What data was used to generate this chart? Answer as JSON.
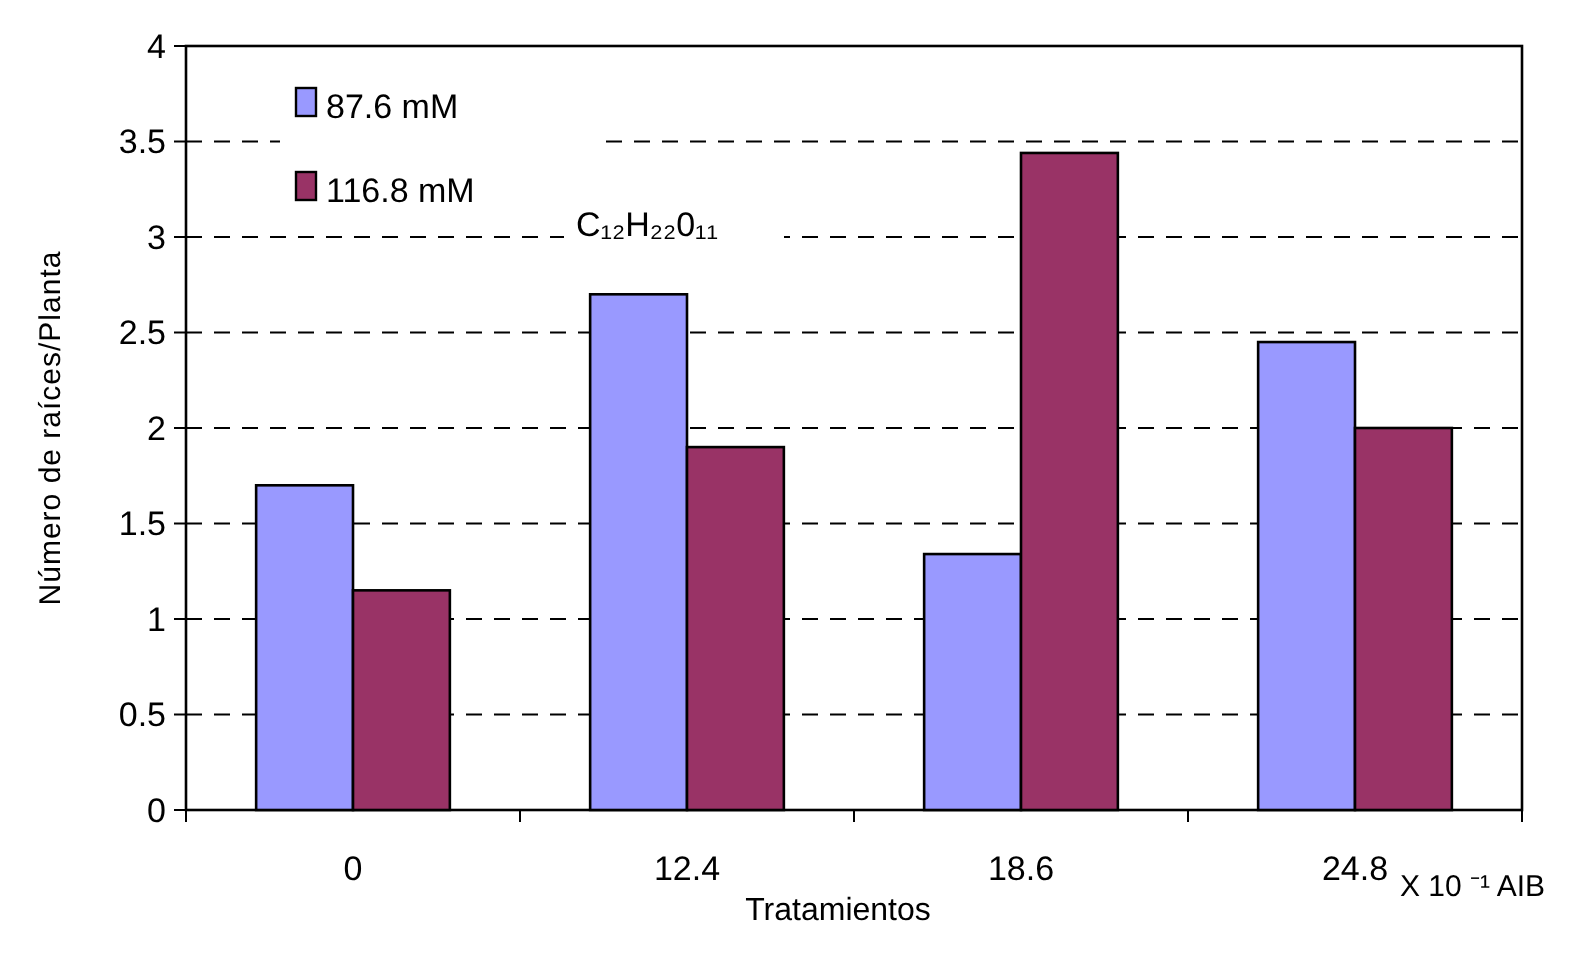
{
  "chart_data": {
    "type": "bar",
    "xlabel": "Tratamientos",
    "ylabel": "Número de raíces/Planta",
    "categories": [
      "0",
      "12.4",
      "18.6",
      "24.8"
    ],
    "series": [
      {
        "name": "87.6 mM",
        "color": "#9999ff",
        "values": [
          1.7,
          2.7,
          1.34,
          2.45
        ]
      },
      {
        "name": "116.8 mM",
        "color": "#993366",
        "values": [
          1.15,
          1.9,
          3.44,
          2.0
        ]
      }
    ],
    "ylim": [
      0,
      4
    ],
    "yticks": [
      0,
      0.5,
      1,
      1.5,
      2,
      2.5,
      3,
      3.5,
      4
    ],
    "grid": "y",
    "legend": "top left",
    "annotations": [
      "C₁₂H₂₂0₁₁",
      "X 10 ⁻¹ AIB"
    ]
  }
}
